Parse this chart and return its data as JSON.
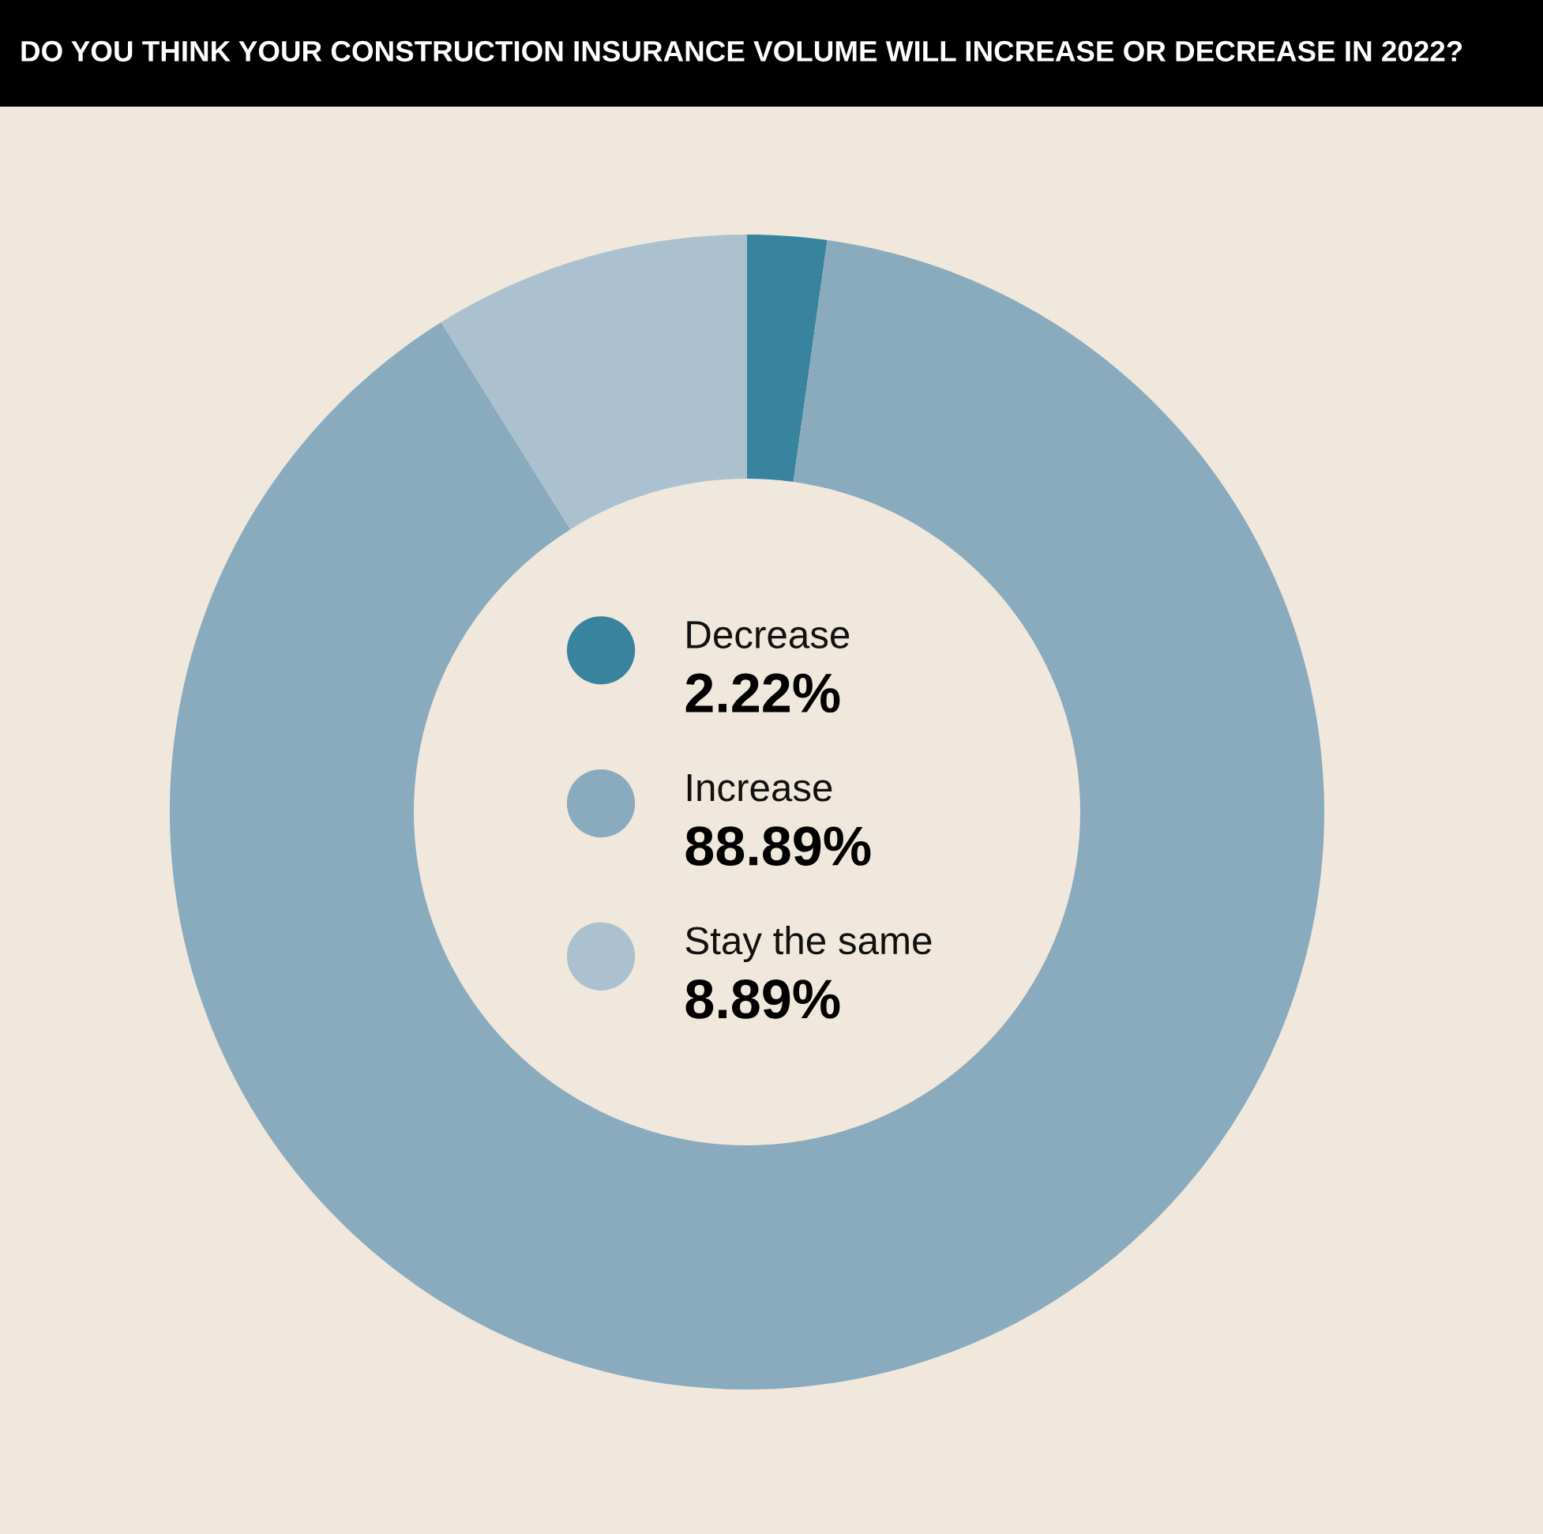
{
  "chart_data": {
    "type": "donut",
    "title": "DO YOU THINK YOUR CONSTRUCTION INSURANCE VOLUME WILL INCREASE OR DECREASE IN 2022?",
    "categories": [
      "Decrease",
      "Increase",
      "Stay the same"
    ],
    "values": [
      2.22,
      88.89,
      8.89
    ],
    "colors": [
      "#38839e",
      "#8aaabe",
      "#abc1cf"
    ],
    "value_labels": [
      "2.22%",
      "88.89%",
      "8.89%"
    ],
    "legend": "center"
  }
}
